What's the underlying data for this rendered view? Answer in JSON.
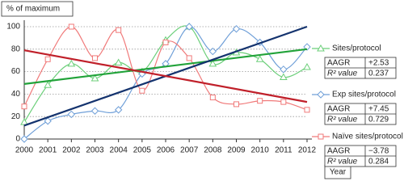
{
  "chart_data": {
    "type": "line",
    "y_label": "% of maximum",
    "x_label": "Year",
    "x": [
      2000,
      2001,
      2002,
      2003,
      2004,
      2005,
      2006,
      2007,
      2008,
      2009,
      2010,
      2011,
      2012
    ],
    "xlim": [
      2000,
      2012
    ],
    "xticks": [
      2000,
      2001,
      2002,
      2003,
      2004,
      2005,
      2006,
      2007,
      2008,
      2009,
      2010,
      2011,
      2012
    ],
    "ylim": [
      0,
      100
    ],
    "yticks": [
      0,
      20,
      40,
      60,
      80,
      100
    ],
    "grid": true,
    "stat_labels": [
      "AAGR",
      "R² value"
    ],
    "series": [
      {
        "name": "Sites/protocol",
        "color": "#6ccf7a",
        "trend_color": "#22a33a",
        "marker": "triangle",
        "values": [
          15,
          48,
          67,
          54,
          68,
          60,
          88,
          100,
          67,
          77,
          71,
          55,
          64
        ],
        "trend": [
          49,
          80
        ],
        "aagr": "+2.53",
        "r2": "0.237"
      },
      {
        "name": "Exp sites/protocol",
        "color": "#6f9fd8",
        "trend_color": "#14336e",
        "marker": "diamond",
        "values": [
          0,
          16,
          22,
          25,
          26,
          58,
          67,
          100,
          78,
          98,
          86,
          62,
          82
        ],
        "trend": [
          12,
          100
        ],
        "aagr": "+7.45",
        "r2": "0.729"
      },
      {
        "name": "Naïve sites/protocol",
        "color": "#f07a7a",
        "trend_color": "#c0202a",
        "marker": "square",
        "values": [
          29,
          71,
          100,
          72,
          97,
          43,
          86,
          72,
          37,
          31,
          34,
          33,
          26
        ],
        "trend": [
          79,
          33
        ],
        "aagr": "−3.78",
        "r2": "0.284"
      }
    ]
  }
}
